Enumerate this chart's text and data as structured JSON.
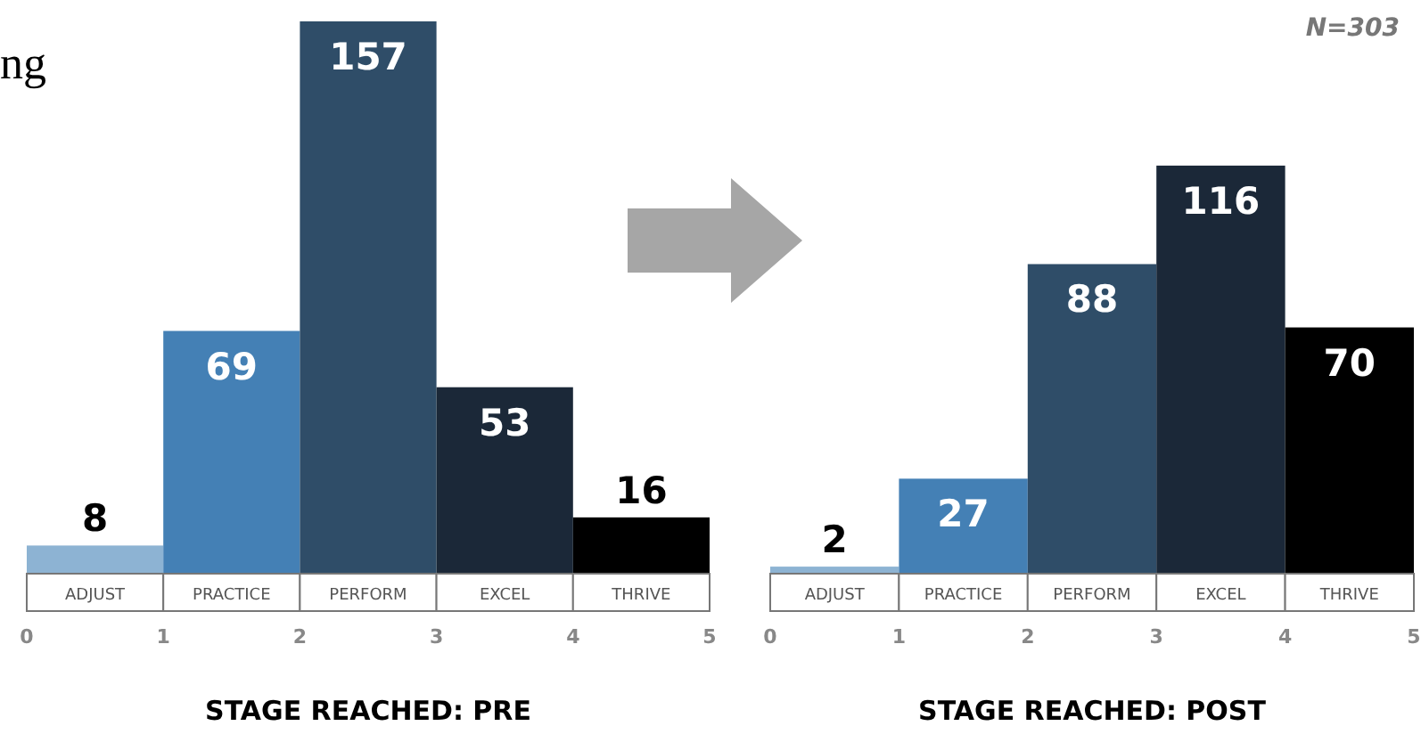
{
  "chart_data": [
    {
      "type": "bar",
      "categories": [
        "ADJUST",
        "PRACTICE",
        "PERFORM",
        "EXCEL",
        "THRIVE"
      ],
      "values": [
        8,
        69,
        157,
        53,
        16
      ],
      "colors": [
        "#8db3d3",
        "#4480b5",
        "#2f4d68",
        "#1b2838",
        "#000000"
      ],
      "x2lim": [
        0,
        5
      ],
      "x2ticks": [
        0,
        1,
        2,
        3,
        4,
        5
      ],
      "data_labels": true,
      "xlabel": "STAGE REACHED: PRE",
      "annotations": [
        "ng"
      ]
    },
    {
      "type": "bar",
      "categories": [
        "ADJUST",
        "PRACTICE",
        "PERFORM",
        "EXCEL",
        "THRIVE"
      ],
      "values": [
        2,
        27,
        88,
        116,
        70
      ],
      "colors": [
        "#8db3d3",
        "#4480b5",
        "#2f4d68",
        "#1b2838",
        "#000000"
      ],
      "x2lim": [
        0,
        5
      ],
      "x2ticks": [
        0,
        1,
        2,
        3,
        4,
        5
      ],
      "data_labels": true,
      "xlabel": "STAGE REACHED: POST",
      "annotations": [
        "N=303"
      ]
    }
  ]
}
